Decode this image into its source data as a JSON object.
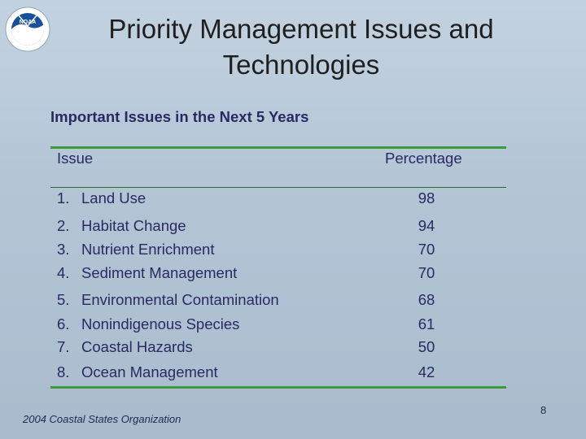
{
  "title": "Priority Management Issues and Technologies",
  "logo_text": "NOAA",
  "table": {
    "heading": "Important Issues in the Next 5 Years",
    "columns": {
      "issue": "Issue",
      "percentage": "Percentage"
    },
    "rows": [
      {
        "num": "1.",
        "issue": "Land Use",
        "pct": "98"
      },
      {
        "num": "2.",
        "issue": "Habitat Change",
        "pct": "94"
      },
      {
        "num": "3.",
        "issue": "Nutrient Enrichment",
        "pct": "70"
      },
      {
        "num": "4.",
        "issue": "Sediment Management",
        "pct": "70"
      },
      {
        "num": "5.",
        "issue": "Environmental Contamination",
        "pct": "68"
      },
      {
        "num": "6.",
        "issue": "Nonindigenous Species",
        "pct": "61"
      },
      {
        "num": "7.",
        "issue": "Coastal Hazards",
        "pct": "50"
      },
      {
        "num": "8.",
        "issue": "Ocean Management",
        "pct": "42"
      }
    ]
  },
  "footer": {
    "source": "2004 Coastal States Organization",
    "page_number": "8"
  },
  "colors": {
    "accent_rule": "#3a9a3a",
    "table_text": "#2a2a62",
    "logo_blue": "#1a4f9c"
  }
}
